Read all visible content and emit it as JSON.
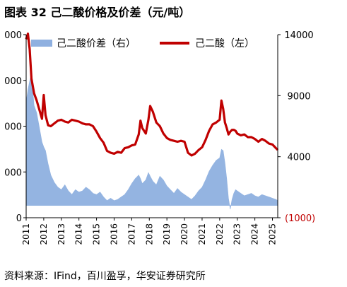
{
  "figure": {
    "title": "图表 32 己二酸价格及价差（元/吨）",
    "source": "资料来源：IFind，百川盈孚，华安证券研究所"
  },
  "colors": {
    "spread_area": "#8fb0e0",
    "price_line": "#c00000",
    "negative_tick": "#c00000",
    "axis": "#000000"
  },
  "chart_data": {
    "type": "area",
    "title": "",
    "xlabel": "",
    "ylabel": "",
    "legend_placement": "top",
    "grid": false,
    "x_ticks": [
      "2011",
      "2012",
      "2013",
      "2014",
      "2015",
      "2016",
      "2017",
      "2018",
      "2019",
      "2020",
      "2021",
      "2022",
      "2023",
      "2024",
      "2025"
    ],
    "xlim": [
      2011.0,
      2025.3
    ],
    "left_axis": {
      "ylim": [
        0,
        20000
      ],
      "ticks": [
        0,
        5000,
        10000,
        15000,
        20000
      ],
      "tick_labels": [
        "0",
        "000",
        "000",
        "000",
        "000"
      ]
    },
    "right_axis": {
      "ylim": [
        -1000,
        14000
      ],
      "ticks": [
        -1000,
        4000,
        9000,
        14000
      ],
      "tick_labels": [
        "(1000)",
        "4000",
        "9000",
        "14000"
      ]
    },
    "series": [
      {
        "name": "己二酸价差（右）",
        "kind": "area",
        "axis": "right",
        "x": [
          2011.0,
          2011.1,
          2011.2,
          2011.3,
          2011.45,
          2011.6,
          2011.75,
          2011.9,
          2012.0,
          2012.1,
          2012.25,
          2012.4,
          2012.6,
          2012.8,
          2013.0,
          2013.2,
          2013.4,
          2013.6,
          2013.8,
          2014.0,
          2014.2,
          2014.4,
          2014.6,
          2014.8,
          2015.0,
          2015.2,
          2015.4,
          2015.6,
          2015.8,
          2016.0,
          2016.2,
          2016.4,
          2016.6,
          2016.8,
          2017.0,
          2017.2,
          2017.4,
          2017.5,
          2017.6,
          2017.8,
          2017.95,
          2018.05,
          2018.2,
          2018.4,
          2018.6,
          2018.8,
          2019.0,
          2019.2,
          2019.4,
          2019.6,
          2019.8,
          2020.0,
          2020.2,
          2020.4,
          2020.6,
          2020.8,
          2021.0,
          2021.2,
          2021.4,
          2021.6,
          2021.8,
          2022.0,
          2022.1,
          2022.2,
          2022.3,
          2022.4,
          2022.5,
          2022.6,
          2022.7,
          2022.8,
          2022.9,
          2023.0,
          2023.2,
          2023.4,
          2023.6,
          2023.8,
          2024.0,
          2024.2,
          2024.4,
          2024.6,
          2024.8,
          2025.0,
          2025.2,
          2025.3
        ],
        "values": [
          8500,
          9500,
          10200,
          10800,
          8200,
          7600,
          6400,
          5200,
          4800,
          4500,
          3400,
          2500,
          1900,
          1500,
          1300,
          1700,
          1200,
          900,
          1300,
          1100,
          1200,
          1500,
          1300,
          1000,
          900,
          1100,
          700,
          400,
          600,
          400,
          500,
          700,
          900,
          1300,
          1800,
          2200,
          2500,
          2200,
          1800,
          2100,
          2700,
          2400,
          2000,
          1700,
          2400,
          2100,
          1600,
          1300,
          1000,
          1400,
          1100,
          900,
          700,
          500,
          800,
          1200,
          1500,
          2100,
          2800,
          3300,
          3700,
          3900,
          4600,
          4500,
          3500,
          2200,
          600,
          -300,
          500,
          1000,
          1300,
          1200,
          1000,
          800,
          900,
          1000,
          800,
          700,
          900,
          800,
          700,
          600,
          500,
          400
        ]
      },
      {
        "name": "己二酸（左）",
        "kind": "line",
        "axis": "left",
        "x": [
          2011.0,
          2011.1,
          2011.2,
          2011.3,
          2011.45,
          2011.6,
          2011.75,
          2011.9,
          2012.0,
          2012.1,
          2012.25,
          2012.4,
          2012.6,
          2012.8,
          2013.0,
          2013.2,
          2013.4,
          2013.6,
          2013.8,
          2014.0,
          2014.2,
          2014.4,
          2014.6,
          2014.8,
          2015.0,
          2015.2,
          2015.4,
          2015.6,
          2015.8,
          2016.0,
          2016.2,
          2016.4,
          2016.6,
          2016.8,
          2017.0,
          2017.2,
          2017.4,
          2017.5,
          2017.6,
          2017.8,
          2017.95,
          2018.05,
          2018.2,
          2018.4,
          2018.6,
          2018.8,
          2019.0,
          2019.2,
          2019.4,
          2019.6,
          2019.8,
          2020.0,
          2020.2,
          2020.4,
          2020.6,
          2020.8,
          2021.0,
          2021.2,
          2021.4,
          2021.6,
          2021.8,
          2022.0,
          2022.1,
          2022.2,
          2022.3,
          2022.4,
          2022.5,
          2022.6,
          2022.7,
          2022.8,
          2022.9,
          2023.0,
          2023.2,
          2023.4,
          2023.6,
          2023.8,
          2024.0,
          2024.2,
          2024.4,
          2024.6,
          2024.8,
          2025.0,
          2025.2,
          2025.3
        ],
        "values": [
          19500,
          20100,
          18400,
          15200,
          13600,
          12800,
          11800,
          10800,
          13400,
          11200,
          10100,
          10000,
          10300,
          10600,
          10700,
          10500,
          10400,
          10700,
          10600,
          10500,
          10300,
          10200,
          10200,
          10000,
          9400,
          8700,
          8200,
          7300,
          7100,
          7000,
          7200,
          7100,
          7600,
          7700,
          7900,
          8000,
          9100,
          10600,
          9800,
          9200,
          10700,
          12200,
          11600,
          10400,
          10000,
          9200,
          8700,
          8500,
          8400,
          8300,
          8400,
          8300,
          7100,
          6800,
          7000,
          7400,
          7700,
          8500,
          9500,
          10200,
          10400,
          10700,
          12800,
          11900,
          10400,
          9800,
          9100,
          9400,
          9600,
          9600,
          9500,
          9200,
          9000,
          9100,
          8800,
          8800,
          8600,
          8300,
          8600,
          8400,
          8100,
          8000,
          7600,
          7400
        ]
      }
    ]
  }
}
